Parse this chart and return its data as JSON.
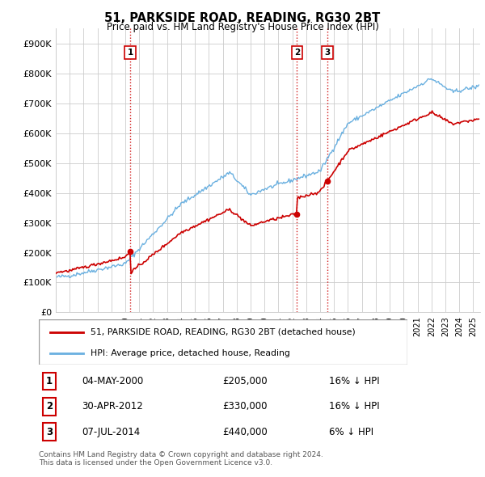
{
  "title": "51, PARKSIDE ROAD, READING, RG30 2BT",
  "subtitle": "Price paid vs. HM Land Registry's House Price Index (HPI)",
  "ylabel_ticks": [
    "£0",
    "£100K",
    "£200K",
    "£300K",
    "£400K",
    "£500K",
    "£600K",
    "£700K",
    "£800K",
    "£900K"
  ],
  "ytick_values": [
    0,
    100000,
    200000,
    300000,
    400000,
    500000,
    600000,
    700000,
    800000,
    900000
  ],
  "ylim": [
    0,
    950000
  ],
  "xlim_start": 1995.0,
  "xlim_end": 2025.5,
  "sale_points": [
    {
      "label": "1",
      "date": "04-MAY-2000",
      "price": 205000,
      "year": 2000.35,
      "hpi_pct": "16% ↓ HPI"
    },
    {
      "label": "2",
      "date": "30-APR-2012",
      "price": 330000,
      "year": 2012.33,
      "hpi_pct": "16% ↓ HPI"
    },
    {
      "label": "3",
      "date": "07-JUL-2014",
      "price": 440000,
      "year": 2014.52,
      "hpi_pct": "6% ↓ HPI"
    }
  ],
  "legend_red": "51, PARKSIDE ROAD, READING, RG30 2BT (detached house)",
  "legend_blue": "HPI: Average price, detached house, Reading",
  "footer": "Contains HM Land Registry data © Crown copyright and database right 2024.\nThis data is licensed under the Open Government Licence v3.0.",
  "red_color": "#cc0000",
  "blue_color": "#6ab0e0",
  "bg_color": "#ffffff",
  "grid_color": "#cccccc"
}
